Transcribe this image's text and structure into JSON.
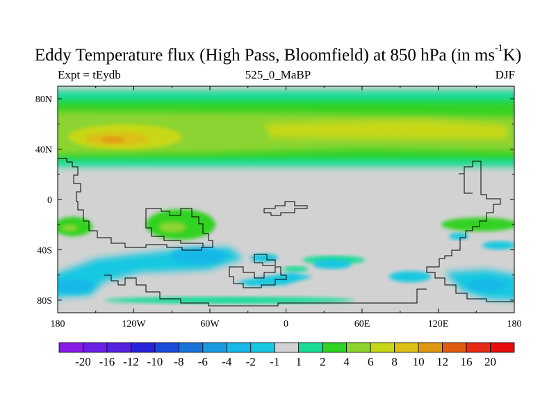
{
  "title": {
    "main": "Eddy Temperature flux (High Pass, Bloomfield) at 850 hPa (in ms",
    "superscript": "-1",
    "suffix": "K)"
  },
  "subtitle": {
    "left": "Expt = tEydb",
    "center": "525_0_MaBP",
    "right": "DJF"
  },
  "axes": {
    "x_ticks": [
      "180",
      "120W",
      "60W",
      "0",
      "60E",
      "120E",
      "180"
    ],
    "x_values": [
      -180,
      -120,
      -60,
      0,
      60,
      120,
      180
    ],
    "y_ticks": [
      "80N",
      "40N",
      "0",
      "40S",
      "80S"
    ],
    "y_values": [
      80,
      40,
      0,
      -40,
      -80
    ],
    "lon_range": [
      -180,
      180
    ],
    "lat_range": [
      -90,
      90
    ]
  },
  "colorbar": {
    "labels": [
      "-20",
      "-16",
      "-12",
      "-10",
      "-8",
      "-6",
      "-4",
      "-2",
      "-1",
      "1",
      "2",
      "4",
      "6",
      "8",
      "10",
      "12",
      "16",
      "20"
    ],
    "colors": [
      "#8a1ae6",
      "#6a1ee6",
      "#5522e0",
      "#2a22d8",
      "#1a4ad8",
      "#1a74d8",
      "#1a9ae0",
      "#18b8e8",
      "#18c8e0",
      "#d2d2d2",
      "#18dc96",
      "#30d224",
      "#8cd430",
      "#c8d818",
      "#dcc014",
      "#e09814",
      "#e05a10",
      "#e62a14",
      "#e80c0c"
    ]
  },
  "colors": {
    "land_outline": "#000000",
    "no_data": "#d2d2d2"
  }
}
